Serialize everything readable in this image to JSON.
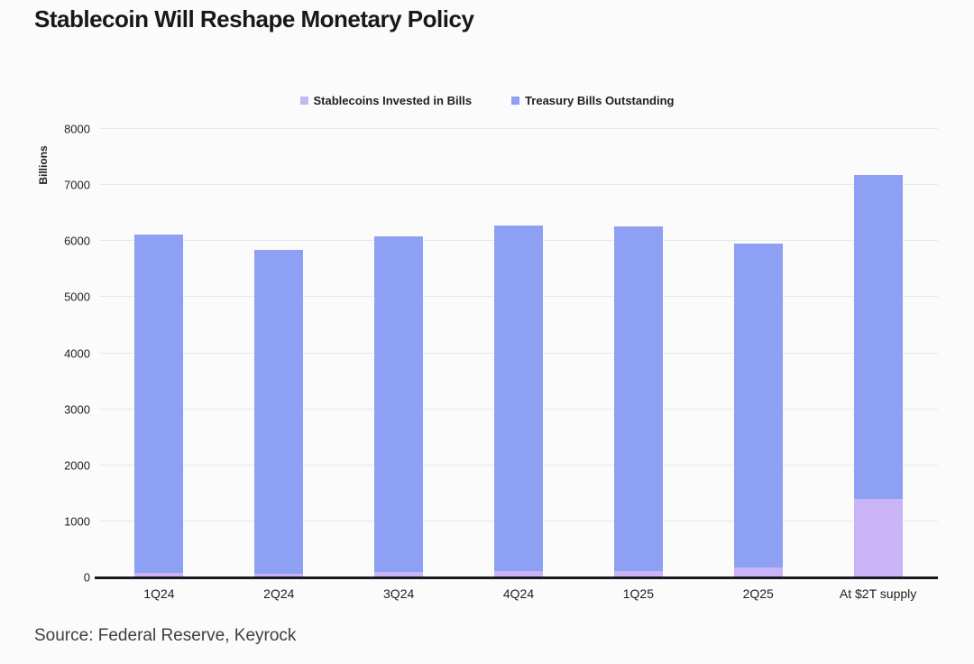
{
  "page": {
    "title": "Stablecoin Will Reshape Monetary Policy",
    "source": "Source: Federal Reserve, Keyrock"
  },
  "chart_data": {
    "type": "bar",
    "stacked": true,
    "title": "Stablecoin Will Reshape Monetary Policy",
    "categories": [
      "1Q24",
      "2Q24",
      "3Q24",
      "4Q24",
      "1Q25",
      "2Q25",
      "At $2T supply"
    ],
    "series": [
      {
        "name": "Stablecoins Invested in Bills",
        "color": "#c8b4f7",
        "values": [
          80,
          70,
          95,
          105,
          120,
          180,
          1400
        ]
      },
      {
        "name": "Treasury Bills Outstanding",
        "color": "#8da0f3",
        "values": [
          6110,
          5840,
          6080,
          6270,
          6260,
          5950,
          7180
        ]
      }
    ],
    "series_note": "Treasury Bills Outstanding values are total bar heights; Stablecoins Invested in Bills is drawn as the bottom segment of each bar",
    "xlabel": "",
    "ylabel": "Billions",
    "ylim": [
      0,
      8000
    ],
    "yticks": [
      0,
      1000,
      2000,
      3000,
      4000,
      5000,
      6000,
      7000,
      8000
    ],
    "grid": true,
    "legend_position": "top-center",
    "colors": {
      "background": "#fbfbfc",
      "gridline": "#e8e8ea",
      "axis_line": "#1a1a1e",
      "text": "#1f1f23"
    }
  }
}
